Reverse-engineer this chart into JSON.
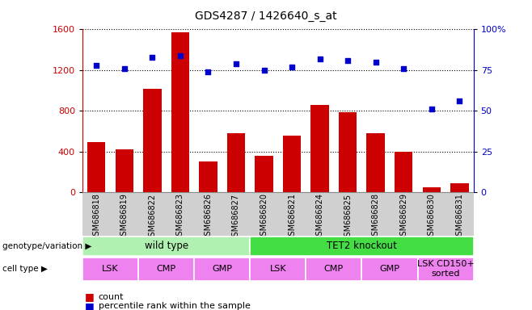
{
  "title": "GDS4287 / 1426640_s_at",
  "samples": [
    "GSM686818",
    "GSM686819",
    "GSM686822",
    "GSM686823",
    "GSM686826",
    "GSM686827",
    "GSM686820",
    "GSM686821",
    "GSM686824",
    "GSM686825",
    "GSM686828",
    "GSM686829",
    "GSM686830",
    "GSM686831"
  ],
  "counts": [
    490,
    420,
    1020,
    1570,
    300,
    580,
    355,
    555,
    860,
    790,
    580,
    395,
    45,
    85
  ],
  "percentiles": [
    78,
    76,
    83,
    84,
    74,
    79,
    75,
    77,
    82,
    81,
    80,
    76,
    51,
    56
  ],
  "bar_color": "#cc0000",
  "dot_color": "#0000cc",
  "ylim_left": [
    0,
    1600
  ],
  "ylim_right": [
    0,
    100
  ],
  "yticks_left": [
    0,
    400,
    800,
    1200,
    1600
  ],
  "yticks_right": [
    0,
    25,
    50,
    75,
    100
  ],
  "yticklabels_right": [
    "0",
    "25",
    "50",
    "75",
    "100%"
  ],
  "genotype_groups": [
    {
      "label": "wild type",
      "start": 0,
      "end": 5,
      "color": "#b0f0b0"
    },
    {
      "label": "TET2 knockout",
      "start": 6,
      "end": 13,
      "color": "#44dd44"
    }
  ],
  "cell_type_groups": [
    {
      "label": "LSK",
      "start": 0,
      "end": 1,
      "color": "#ee82ee"
    },
    {
      "label": "CMP",
      "start": 2,
      "end": 3,
      "color": "#ee82ee"
    },
    {
      "label": "GMP",
      "start": 4,
      "end": 5,
      "color": "#ee82ee"
    },
    {
      "label": "LSK",
      "start": 6,
      "end": 7,
      "color": "#ee82ee"
    },
    {
      "label": "CMP",
      "start": 8,
      "end": 9,
      "color": "#ee82ee"
    },
    {
      "label": "GMP",
      "start": 10,
      "end": 11,
      "color": "#ee82ee"
    },
    {
      "label": "LSK CD150+\nsorted",
      "start": 12,
      "end": 13,
      "color": "#ee82ee"
    }
  ],
  "xtick_bg": "#d0d0d0",
  "plot_bg": "#ffffff",
  "fig_bg": "#ffffff"
}
